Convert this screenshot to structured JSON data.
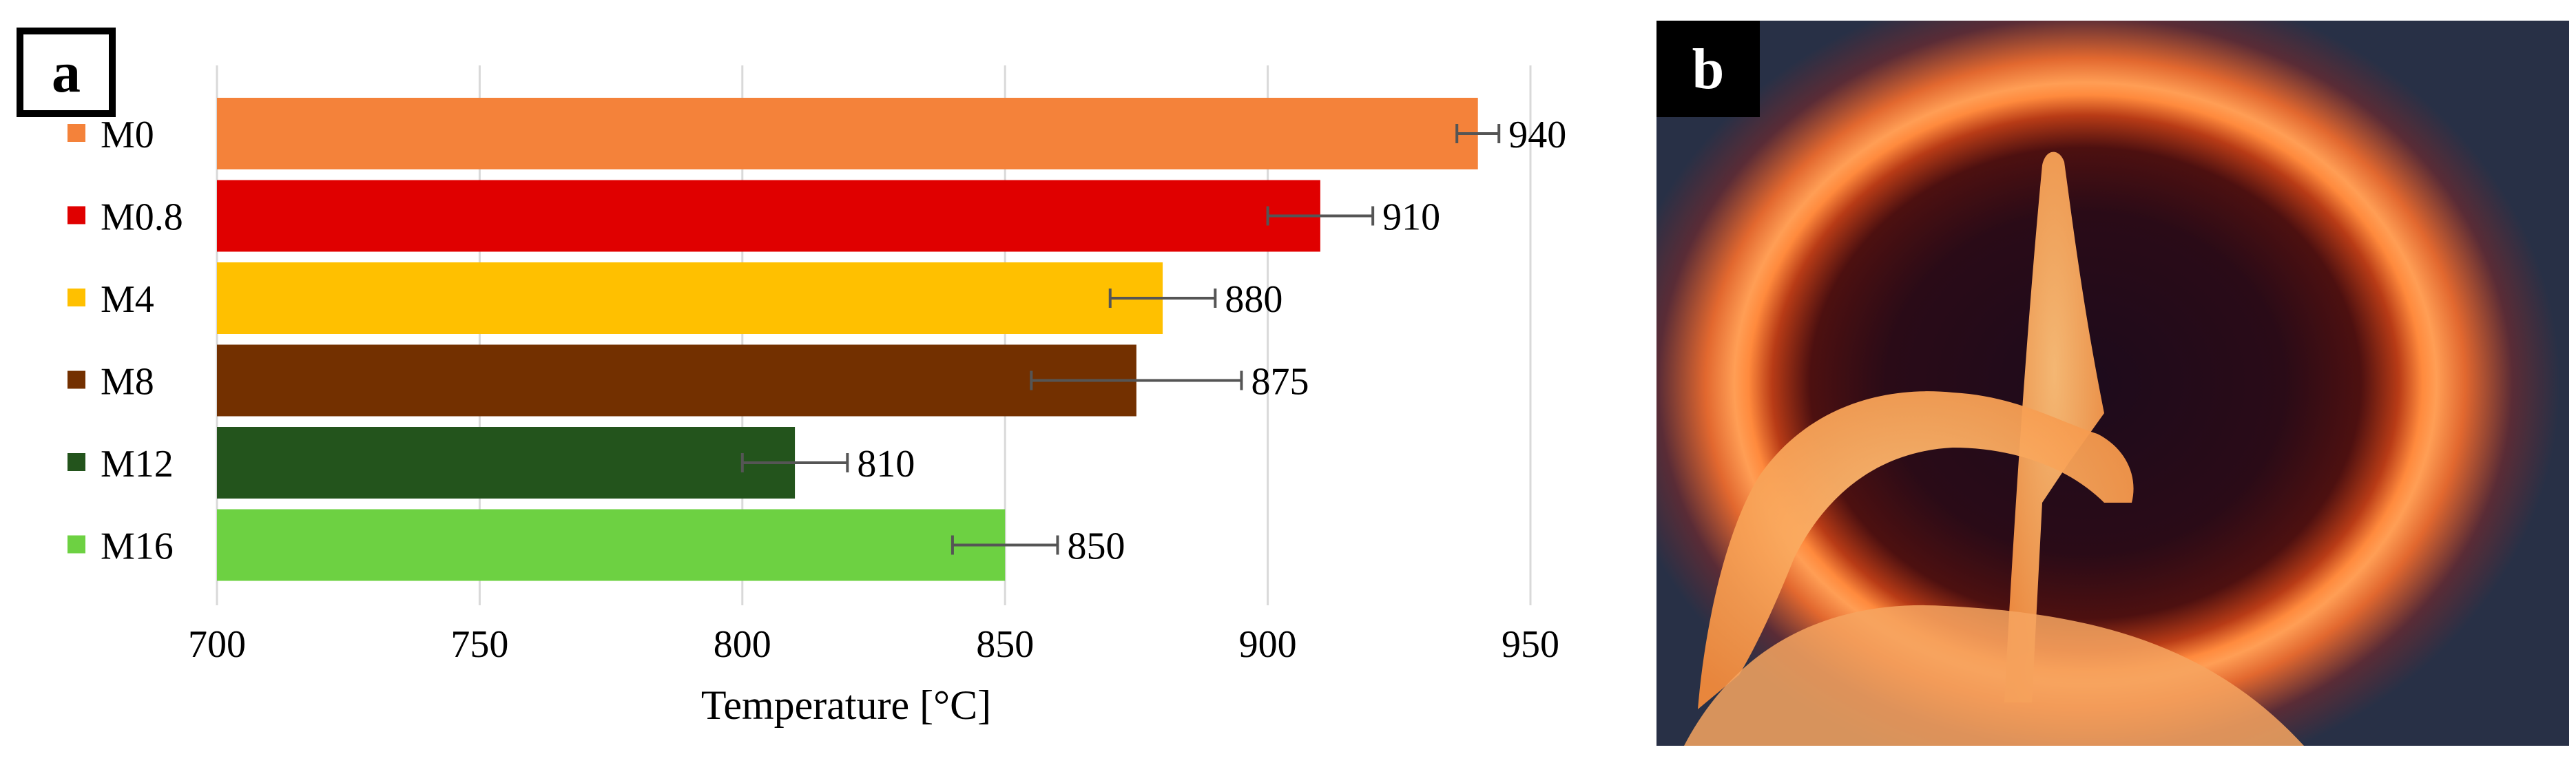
{
  "panels": {
    "a_label": "a",
    "b_label": "b"
  },
  "chart_data": {
    "type": "bar",
    "orientation": "horizontal",
    "title": "",
    "xlabel": "Temperature [°C]",
    "ylabel": "",
    "xlim": [
      700,
      960
    ],
    "xticks": [
      700,
      750,
      800,
      850,
      900,
      950
    ],
    "grid": "vertical",
    "legend": "left",
    "series": [
      {
        "name": "M0",
        "value": 940,
        "error": 4,
        "label": "940",
        "color": "#F4823A"
      },
      {
        "name": "M0.8",
        "value": 910,
        "error": 10,
        "label": "910",
        "color": "#E00000"
      },
      {
        "name": "M4",
        "value": 880,
        "error": 10,
        "label": "880",
        "color": "#FFC000"
      },
      {
        "name": "M8",
        "value": 875,
        "error": 20,
        "label": "875",
        "color": "#733000"
      },
      {
        "name": "M12",
        "value": 810,
        "error": 10,
        "label": "810",
        "color": "#23541C"
      },
      {
        "name": "M16",
        "value": 850,
        "error": 10,
        "label": "850",
        "color": "#6DD142"
      }
    ]
  },
  "photo": {
    "description_icon": "furnace-sample-photo"
  }
}
